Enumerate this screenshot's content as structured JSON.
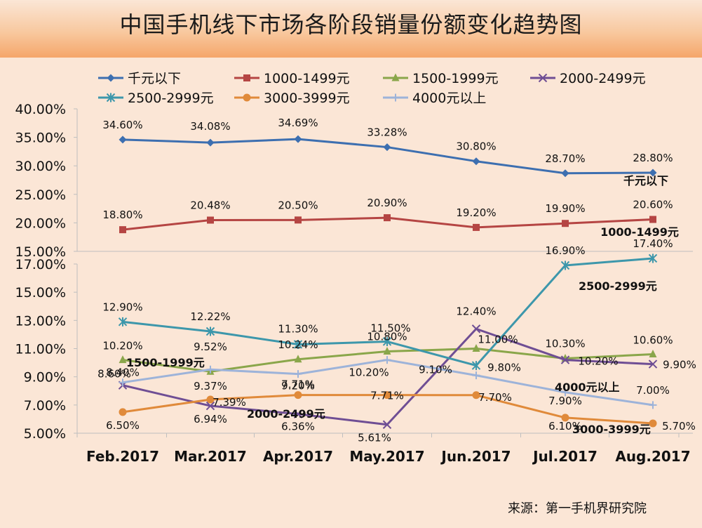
{
  "title": "中国手机线下市场各阶段销量份额变化趋势图",
  "source": "来源：第一手机界研究院",
  "chart_data": {
    "type": "line",
    "title": "中国手机线下市场各阶段销量份额变化趋势图",
    "categories": [
      "Feb.2017",
      "Mar.2017",
      "Apr.2017",
      "May.2017",
      "Jun.2017",
      "Jul.2017",
      "Aug.2017"
    ],
    "axes": {
      "upper": {
        "ticks": [
          "40.00%",
          "35.00%",
          "30.00%",
          "25.00%",
          "20.00%",
          "15.00%"
        ],
        "ylim": [
          15,
          40
        ]
      },
      "lower": {
        "ticks": [
          "17.00%",
          "15.00%",
          "13.00%",
          "11.00%",
          "9.00%",
          "7.00%",
          "5.00%"
        ],
        "ylim": [
          5,
          17
        ]
      }
    },
    "series": [
      {
        "name": "千元以下",
        "panel": "upper",
        "color": "#3d6fb0",
        "marker": "diamond",
        "values": [
          34.6,
          34.08,
          34.69,
          33.28,
          30.8,
          28.7,
          28.8
        ],
        "labels": [
          "34.60%",
          "34.08%",
          "34.69%",
          "33.28%",
          "30.80%",
          "28.70%",
          "28.80%"
        ],
        "end_label": "千元以下"
      },
      {
        "name": "1000-1499元",
        "panel": "upper",
        "color": "#b54543",
        "marker": "square",
        "values": [
          18.8,
          20.48,
          20.5,
          20.9,
          19.2,
          19.9,
          20.6
        ],
        "labels": [
          "18.80%",
          "20.48%",
          "20.50%",
          "20.90%",
          "19.20%",
          "19.90%",
          "20.60%"
        ],
        "end_label": "1000-1499元"
      },
      {
        "name": "1500-1999元",
        "panel": "lower",
        "color": "#8aa64a",
        "marker": "triangle",
        "values": [
          10.2,
          9.37,
          10.24,
          10.8,
          11.0,
          10.3,
          10.6
        ],
        "labels": [
          "10.20%",
          "9.37%",
          "10.24%",
          "10.80%",
          "11.00%",
          "10.30%",
          "10.60%"
        ],
        "end_label": "1500-1999元"
      },
      {
        "name": "2000-2499元",
        "panel": "lower",
        "color": "#6f4e94",
        "marker": "x",
        "values": [
          8.4,
          6.94,
          6.36,
          5.61,
          12.4,
          10.2,
          9.9
        ],
        "labels": [
          "8.40%",
          "6.94%",
          "6.36%",
          "5.61%",
          "12.40%",
          "10.20%",
          "9.90%"
        ],
        "end_label": "2000-2499元"
      },
      {
        "name": "2500-2999元",
        "panel": "lower",
        "color": "#3d97ab",
        "marker": "star",
        "values": [
          12.9,
          12.22,
          11.3,
          11.5,
          9.8,
          16.9,
          17.4
        ],
        "labels": [
          "12.90%",
          "12.22%",
          "11.30%",
          "11.50%",
          "9.80%",
          "16.90%",
          "17.40%"
        ],
        "end_label": "2500-2999元"
      },
      {
        "name": "3000-3999元",
        "panel": "lower",
        "color": "#e08a3a",
        "marker": "circle",
        "values": [
          6.5,
          7.39,
          7.71,
          7.71,
          7.7,
          6.1,
          5.7
        ],
        "labels": [
          "6.50%",
          "7.39%",
          "7.71%",
          "7.71%",
          "7.70%",
          "6.10%",
          "5.70%"
        ],
        "end_label": "3000-3999元"
      },
      {
        "name": "4000元以上",
        "panel": "lower",
        "color": "#9db3d9",
        "marker": "plus",
        "values": [
          8.6,
          9.52,
          9.2,
          10.2,
          9.1,
          7.9,
          7.0
        ],
        "labels": [
          "8.60%",
          "9.52%",
          "9.20%",
          "10.20%",
          "9.10%",
          "7.90%",
          "7.00%"
        ],
        "end_label": "4000元以上"
      }
    ],
    "legend_position": "top-left",
    "grid": false
  }
}
